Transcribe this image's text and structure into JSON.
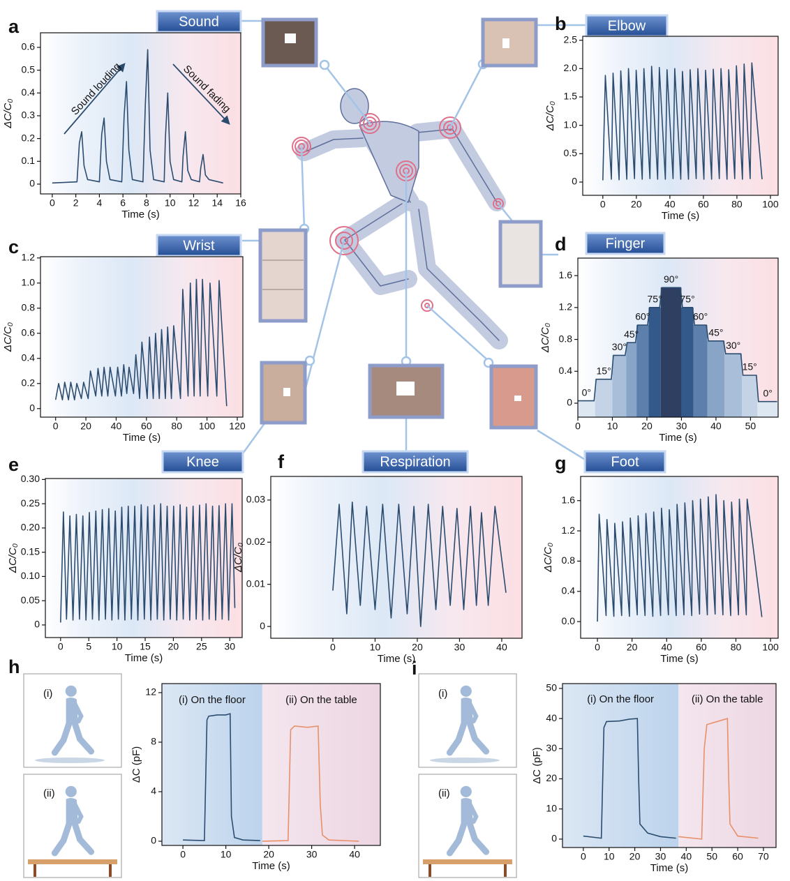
{
  "chart_data": [
    {
      "type": "line",
      "panel": "a",
      "sensor": "Sound",
      "xlabel": "Time (s)",
      "ylabel": "ΔC/C₀",
      "color": "#2b4c6f",
      "annotations": [
        "Sound louding",
        "Sound fading"
      ],
      "xlim": [
        -1,
        16
      ],
      "ylim": [
        -0.043,
        0.664
      ],
      "xticks": [
        0,
        2,
        4,
        6,
        8,
        10,
        12,
        14,
        16
      ],
      "yticks": [
        0,
        0.1,
        0.2,
        0.3,
        0.4,
        0.5,
        0.6
      ],
      "x": [
        0,
        2.1,
        2.3,
        2.5,
        2.7,
        3.0,
        4.0,
        4.2,
        4.4,
        4.6,
        4.9,
        5.9,
        6.1,
        6.3,
        6.5,
        6.8,
        7.7,
        7.9,
        8.1,
        8.3,
        8.6,
        9.5,
        9.6,
        9.8,
        10.0,
        10.3,
        11.0,
        11.1,
        11.3,
        11.5,
        11.8,
        12.5,
        12.6,
        12.8,
        13.0,
        13.3,
        14.5
      ],
      "values": [
        0.005,
        0.01,
        0.18,
        0.23,
        0.08,
        0.02,
        0.01,
        0.22,
        0.29,
        0.1,
        0.02,
        0.01,
        0.3,
        0.45,
        0.15,
        0.02,
        0.01,
        0.35,
        0.59,
        0.15,
        0.02,
        0.01,
        0.2,
        0.4,
        0.1,
        0.02,
        0.01,
        0.12,
        0.23,
        0.06,
        0.02,
        0.01,
        0.07,
        0.13,
        0.04,
        0.02,
        0.005
      ]
    },
    {
      "type": "line",
      "panel": "b",
      "sensor": "Elbow",
      "xlabel": "Time (s)",
      "ylabel": "ΔC/C₀",
      "color": "#2b4c6f",
      "xlim": [
        -12,
        104.6
      ],
      "ylim": [
        -0.234,
        2.57
      ],
      "xticks": [
        0,
        20,
        40,
        60,
        80,
        100
      ],
      "yticks": [
        0,
        0.5,
        {
          "value": 1,
          "label": "1.0"
        },
        1.5,
        {
          "value": 2,
          "label": "2.0"
        },
        2.5
      ],
      "x": [
        0,
        1.5,
        5.1,
        6.1,
        9.7,
        10.7,
        14.3,
        15.3,
        18.9,
        19.9,
        23.5,
        24.5,
        28.1,
        29.1,
        32.7,
        33.7,
        37.3,
        38.3,
        41.9,
        42.9,
        46.5,
        47.5,
        51.1,
        52.1,
        55.7,
        56.7,
        60.3,
        61.3,
        64.9,
        65.9,
        69.5,
        70.5,
        74.1,
        75.1,
        78.7,
        79.7,
        83.3,
        84.3,
        87.9,
        88.9,
        95
      ],
      "values": [
        0.03,
        1.88,
        0.05,
        1.92,
        0.04,
        1.96,
        0.05,
        2.0,
        0.06,
        1.97,
        0.05,
        2.0,
        0.06,
        2.04,
        0.05,
        2.02,
        0.05,
        1.98,
        0.06,
        2.0,
        0.05,
        1.95,
        0.05,
        1.98,
        0.06,
        2.0,
        0.05,
        1.97,
        0.05,
        1.99,
        0.06,
        2.0,
        0.05,
        1.98,
        0.06,
        2.05,
        0.05,
        2.08,
        0.06,
        2.1,
        0.05
      ]
    },
    {
      "type": "line",
      "panel": "c",
      "sensor": "Wrist",
      "xlabel": "Time (s)",
      "ylabel": "ΔC/C₀",
      "color": "#2b4c6f",
      "xlim": [
        -10,
        123.7
      ],
      "ylim": [
        -0.068,
        1.21
      ],
      "xticks": [
        0,
        20,
        40,
        60,
        80,
        100,
        120
      ],
      "yticks": [
        0,
        0.2,
        0.4,
        0.6,
        0.8,
        {
          "value": 1,
          "label": "1.0"
        },
        1.2
      ],
      "x": [
        0,
        2,
        4.5,
        6,
        8.5,
        10,
        12.5,
        14,
        17,
        18.5,
        21.5,
        23,
        26.5,
        28,
        30.5,
        32,
        34.5,
        36,
        39.5,
        41,
        43.5,
        45,
        47,
        48.5,
        51.5,
        53,
        55.5,
        57,
        60.5,
        62,
        64.5,
        66,
        68.5,
        70,
        72.5,
        74,
        76.5,
        78,
        82.5,
        84,
        87.5,
        89,
        91.5,
        93,
        95.5,
        97,
        100.5,
        102,
        106.5,
        108,
        113
      ],
      "values": [
        0.07,
        0.2,
        0.07,
        0.21,
        0.07,
        0.21,
        0.07,
        0.2,
        0.08,
        0.21,
        0.08,
        0.3,
        0.1,
        0.32,
        0.1,
        0.33,
        0.1,
        0.33,
        0.1,
        0.33,
        0.1,
        0.35,
        0.12,
        0.33,
        0.12,
        0.43,
        0.08,
        0.53,
        0.08,
        0.57,
        0.08,
        0.6,
        0.08,
        0.63,
        0.08,
        0.65,
        0.08,
        0.66,
        0.08,
        0.95,
        0.1,
        1.0,
        0.1,
        1.03,
        0.1,
        1.03,
        0.1,
        1.0,
        0.1,
        1.02,
        0.02
      ]
    },
    {
      "type": "steps",
      "panel": "d",
      "sensor": "Finger",
      "xlabel": "Time (s)",
      "ylabel": "ΔC/C₀",
      "color": "#2b4c6f",
      "xlim": [
        0,
        58
      ],
      "ylim": [
        -0.175,
        1.82
      ],
      "xticks": [
        0,
        10,
        20,
        30,
        40,
        50
      ],
      "yticks": [
        0,
        0.4,
        0.8,
        1.2,
        1.6
      ],
      "steps": [
        {
          "label": "0°",
          "x0": 0,
          "x1": 5,
          "level": 0.03,
          "color": "#dde7f1"
        },
        {
          "label": "15°",
          "x0": 5,
          "x1": 10,
          "level": 0.3,
          "color": "#c4d4e6"
        },
        {
          "label": "30°",
          "x0": 10,
          "x1": 14,
          "level": 0.6,
          "color": "#a9bfd9"
        },
        {
          "label": "45°",
          "x0": 14,
          "x1": 17,
          "level": 0.76,
          "color": "#88a4c6"
        },
        {
          "label": "60°",
          "x0": 17,
          "x1": 20.5,
          "level": 0.98,
          "color": "#5c7fab"
        },
        {
          "label": "75°",
          "x0": 20.5,
          "x1": 24,
          "level": 1.2,
          "color": "#33598a"
        },
        {
          "label": "90°",
          "x0": 24,
          "x1": 30,
          "level": 1.45,
          "color": "#2f3f62"
        },
        {
          "label": "75°",
          "x0": 30,
          "x1": 33.5,
          "level": 1.2,
          "color": "#33598a"
        },
        {
          "label": "60°",
          "x0": 33.5,
          "x1": 37.5,
          "level": 0.98,
          "color": "#5c7fab"
        },
        {
          "label": "45°",
          "x0": 37.5,
          "x1": 42.5,
          "level": 0.78,
          "color": "#88a4c6"
        },
        {
          "label": "30°",
          "x0": 42.5,
          "x1": 47.5,
          "level": 0.62,
          "color": "#a9bfd9"
        },
        {
          "label": "15°",
          "x0": 47.5,
          "x1": 52,
          "level": 0.35,
          "color": "#c4d4e6"
        },
        {
          "label": "0°",
          "x0": 52,
          "x1": 58,
          "level": 0.02,
          "color": "#dde7f1"
        }
      ]
    },
    {
      "type": "line",
      "panel": "e",
      "sensor": "Knee",
      "xlabel": "Time (s)",
      "ylabel": "ΔC/C₀",
      "color": "#2b4c6f",
      "xlim": [
        -2.7,
        32.2
      ],
      "ylim": [
        -0.026,
        0.302
      ],
      "xticks": [
        0,
        5,
        10,
        15,
        20,
        25,
        30
      ],
      "yticks": [
        0,
        0.05,
        {
          "value": 0.1,
          "label": "0.10"
        },
        0.15,
        {
          "value": 0.2,
          "label": "0.20"
        },
        0.25,
        {
          "value": 0.3,
          "label": "0.30"
        }
      ],
      "x": [
        0,
        0.5,
        1.05,
        1.65,
        2.2,
        2.8,
        3.35,
        3.95,
        4.5,
        5.1,
        5.65,
        6.25,
        6.8,
        7.4,
        7.95,
        8.55,
        9.1,
        9.7,
        10.25,
        10.85,
        11.4,
        12,
        12.55,
        13.15,
        13.7,
        14.3,
        14.85,
        15.45,
        16,
        16.6,
        17.15,
        17.75,
        18.3,
        18.9,
        19.45,
        20.05,
        20.6,
        21.2,
        21.75,
        22.35,
        22.9,
        23.5,
        24.05,
        24.65,
        25.2,
        25.8,
        26.35,
        26.95,
        27.5,
        28.1,
        28.65,
        29.25,
        29.8,
        30.4,
        30.9
      ],
      "values": [
        0.005,
        0.233,
        0.012,
        0.225,
        0.01,
        0.228,
        0.012,
        0.225,
        0.01,
        0.232,
        0.012,
        0.235,
        0.01,
        0.238,
        0.012,
        0.24,
        0.01,
        0.235,
        0.012,
        0.243,
        0.01,
        0.245,
        0.012,
        0.245,
        0.01,
        0.248,
        0.012,
        0.244,
        0.01,
        0.247,
        0.012,
        0.25,
        0.01,
        0.245,
        0.012,
        0.245,
        0.01,
        0.248,
        0.012,
        0.243,
        0.01,
        0.245,
        0.012,
        0.247,
        0.01,
        0.25,
        0.012,
        0.245,
        0.01,
        0.246,
        0.012,
        0.25,
        0.01,
        0.25,
        0.035
      ]
    },
    {
      "type": "line",
      "panel": "f",
      "sensor": "Respiration",
      "xlabel": "Time (s)",
      "ylabel": "ΔC/C₀",
      "color": "#2b4c6f",
      "xlim": [
        -14.7,
        44.8
      ],
      "ylim": [
        -0.0028,
        0.0356
      ],
      "xticks": [
        0,
        10,
        20,
        30,
        40
      ],
      "yticks": [
        0,
        0.01,
        0.02,
        0.03
      ],
      "x": [
        0,
        1.5,
        3.3,
        4.6,
        6.5,
        8,
        10,
        11.8,
        13.8,
        15.6,
        17.6,
        19.2,
        20.8,
        22.6,
        24.4,
        26,
        27.8,
        29.4,
        31,
        32.6,
        34,
        35.2,
        36.8,
        38.4,
        41
      ],
      "values": [
        0.0085,
        0.029,
        0.003,
        0.0295,
        0.005,
        0.0285,
        0.004,
        0.029,
        0.002,
        0.029,
        0.003,
        0.0285,
        0,
        0.029,
        0.004,
        0.0285,
        0.005,
        0.028,
        0.004,
        0.0285,
        0.005,
        0.027,
        0.005,
        0.0285,
        0.008
      ]
    },
    {
      "type": "line",
      "panel": "g",
      "sensor": "Foot",
      "xlabel": "Time (s)",
      "ylabel": "ΔC/C₀",
      "color": "#2b4c6f",
      "xlim": [
        -9.7,
        104.4
      ],
      "ylim": [
        -0.22,
        1.92
      ],
      "xticks": [
        0,
        20,
        40,
        60,
        80,
        100
      ],
      "yticks": [
        {
          "value": 0,
          "label": "0.0"
        },
        0.4,
        0.8,
        1.2,
        1.6
      ],
      "x": [
        0,
        1,
        5,
        5.5,
        9.5,
        10,
        14,
        14.5,
        18.5,
        19,
        23,
        23.5,
        27.5,
        28,
        32,
        32.5,
        36.5,
        37,
        41,
        41.5,
        45.5,
        46,
        50,
        50.5,
        54.5,
        55,
        59,
        59.5,
        63.5,
        64,
        68,
        68.5,
        72.5,
        73,
        77,
        77.5,
        81.5,
        82,
        86,
        86.5,
        95
      ],
      "values": [
        0,
        1.42,
        0.08,
        1.35,
        0.07,
        1.3,
        0.08,
        1.32,
        0.07,
        1.37,
        0.09,
        1.4,
        0.08,
        1.43,
        0.07,
        1.45,
        0.08,
        1.5,
        0.09,
        1.48,
        0.08,
        1.55,
        0.09,
        1.57,
        0.08,
        1.6,
        0.1,
        1.62,
        0.09,
        1.65,
        0.1,
        1.68,
        0.09,
        1.6,
        0.08,
        1.58,
        0.09,
        1.62,
        0.09,
        1.62,
        0.06
      ]
    },
    {
      "type": "split-line",
      "panel": "h",
      "xlabel": "Time (s)",
      "ylabel": "ΔC (pF)",
      "split": 18.5,
      "xlim": [
        -4.9,
        46
      ],
      "ylim": [
        -0.34,
        12.73
      ],
      "xticks": [
        0,
        10,
        20,
        30,
        40
      ],
      "yticks": [
        0,
        4,
        8,
        12
      ],
      "series": [
        {
          "name": "(i) On the floor",
          "color": "#2b4c6f",
          "x": [
            0,
            5,
            5.6,
            6,
            8,
            10,
            11,
            11.3,
            12,
            14,
            18
          ],
          "values": [
            0.1,
            0.05,
            9.8,
            10.1,
            10.2,
            10.2,
            10.3,
            2,
            0.3,
            0.1,
            0.05
          ]
        },
        {
          "name": "(ii) On the table",
          "color": "#e8906a",
          "x": [
            18.5,
            24.5,
            25.1,
            26,
            29,
            31.5,
            32,
            32.5,
            34,
            41
          ],
          "values": [
            0,
            0.05,
            9,
            9.3,
            9.2,
            9.3,
            3,
            0.5,
            0.1,
            0
          ]
        }
      ]
    },
    {
      "type": "split-line",
      "panel": "i",
      "xlabel": "Time (s)",
      "ylabel": "ΔC (pF)",
      "split": 37,
      "xlim": [
        -8.1,
        74.9
      ],
      "ylim": [
        -2.8,
        51.6
      ],
      "xticks": [
        0,
        10,
        20,
        30,
        40,
        50,
        60,
        70
      ],
      "yticks": [
        0,
        10,
        20,
        30,
        40,
        50
      ],
      "series": [
        {
          "name": "(i) On the floor",
          "color": "#2b4c6f",
          "x": [
            0,
            7,
            8,
            9,
            14,
            18,
            21,
            21.5,
            22,
            25,
            30,
            36
          ],
          "values": [
            1,
            0.3,
            37,
            39,
            39.2,
            39.8,
            40,
            20,
            5,
            2,
            0.8,
            0.3
          ]
        },
        {
          "name": "(ii) On the table",
          "color": "#e8906a",
          "x": [
            37,
            46,
            47,
            48,
            52,
            56,
            56.5,
            57,
            60,
            68
          ],
          "values": [
            0.8,
            0,
            30,
            38,
            39,
            40,
            20,
            5,
            1,
            0.3
          ]
        }
      ]
    }
  ],
  "illustrations": {
    "h": [
      "(i)",
      "(ii)"
    ],
    "i": [
      "(i)",
      "(ii)"
    ]
  }
}
